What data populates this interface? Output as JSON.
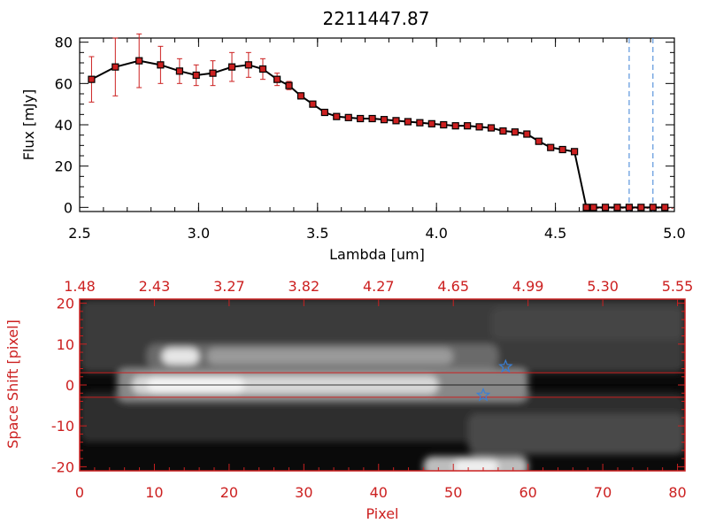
{
  "title": "2211447.87",
  "chart_data": [
    {
      "type": "line",
      "title": "2211447.87",
      "xlabel": "Lambda [um]",
      "ylabel": "Flux [mJy]",
      "xlim": [
        2.5,
        5.0
      ],
      "ylim": [
        -2,
        82
      ],
      "xticks": [
        "2.5",
        "3.0",
        "3.5",
        "4.0",
        "4.5",
        "5.0"
      ],
      "yticks": [
        "0",
        "20",
        "40",
        "60",
        "80"
      ],
      "grid": false,
      "colors": {
        "line": "#000000",
        "marker": "#cc2020",
        "errorbar": "#cc2020",
        "vline": "#3a7fd5"
      },
      "x": [
        2.55,
        2.65,
        2.75,
        2.84,
        2.92,
        2.99,
        3.06,
        3.14,
        3.21,
        3.27,
        3.33,
        3.38,
        3.43,
        3.48,
        3.53,
        3.58,
        3.63,
        3.68,
        3.73,
        3.78,
        3.83,
        3.88,
        3.93,
        3.98,
        4.03,
        4.08,
        4.13,
        4.18,
        4.23,
        4.28,
        4.33,
        4.38,
        4.43,
        4.48,
        4.53,
        4.58,
        4.63,
        4.66,
        4.71,
        4.76,
        4.81,
        4.86,
        4.91,
        4.96
      ],
      "y": [
        62,
        68,
        71,
        69,
        66,
        64,
        65,
        68,
        69,
        67,
        62,
        59,
        54,
        50,
        46,
        44,
        43.5,
        43,
        43,
        42.5,
        42,
        41.5,
        41,
        40.5,
        40,
        39.5,
        39.5,
        39,
        38.5,
        37,
        36.5,
        35.5,
        32,
        29,
        28,
        27,
        0,
        0,
        0,
        0,
        0,
        0,
        0,
        0
      ],
      "yerr": [
        11,
        14,
        13,
        9,
        6,
        5,
        6,
        7,
        6,
        5,
        3,
        2,
        1.5,
        1,
        1,
        1,
        1,
        1,
        1,
        1,
        1,
        1,
        1,
        1,
        1,
        1,
        1,
        1,
        1,
        1,
        1,
        1,
        1,
        1,
        1,
        1,
        1,
        1,
        1,
        1,
        1,
        1,
        1,
        1
      ],
      "vlines": [
        4.81,
        4.91
      ]
    },
    {
      "type": "heatmap",
      "xlabel": "Pixel",
      "ylabel": "Space Shift [pixel]",
      "xlim": [
        0,
        81
      ],
      "ylim": [
        -21,
        21
      ],
      "xticks": [
        "0",
        "10",
        "20",
        "30",
        "40",
        "50",
        "60",
        "70",
        "80"
      ],
      "yticks": [
        "-20",
        "-10",
        "0",
        "10",
        "20"
      ],
      "top_axis_ticks": [
        "1.48",
        "2.43",
        "3.27",
        "3.82",
        "4.27",
        "4.65",
        "4.99",
        "5.30",
        "5.55"
      ],
      "horizontal_lines": [
        3,
        -3
      ],
      "stars": [
        {
          "x": 57,
          "y": 4.5
        },
        {
          "x": 54,
          "y": -2.5
        }
      ],
      "colors": {
        "frame": "#cc2020",
        "lines": "#cc2020",
        "stars": "#3a7fd5"
      },
      "colormap": "grayscale"
    }
  ]
}
